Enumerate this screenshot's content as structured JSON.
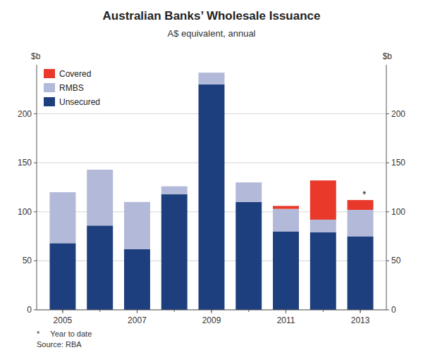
{
  "chart_data": {
    "type": "bar",
    "stacked": true,
    "title": "Australian Banks’ Wholesale Issuance",
    "subtitle": "A$ equivalent, annual",
    "ylabel": "$b",
    "y2label": "$b",
    "footnote": "*     Year to date\nSource: RBA",
    "x": [
      2005,
      2006,
      2007,
      2008,
      2009,
      2010,
      2011,
      2012,
      2013
    ],
    "xlim": [
      2004.3,
      2013.7
    ],
    "xticks": [
      2005,
      2007,
      2009,
      2011,
      2013
    ],
    "series": [
      {
        "name": "Unsecured",
        "color": "#1e3f7e",
        "values": [
          68,
          86,
          62,
          118,
          230,
          110,
          80,
          79,
          75
        ]
      },
      {
        "name": "RMBS",
        "color": "#b3b9d9",
        "values": [
          52,
          57,
          48,
          8,
          12,
          20,
          23,
          13,
          27
        ]
      },
      {
        "name": "Covered",
        "color": "#e8392a",
        "values": [
          0,
          0,
          0,
          0,
          0,
          0,
          3,
          40,
          10
        ]
      }
    ],
    "ylim": [
      0,
      250
    ],
    "yticks": [
      0,
      50,
      100,
      150,
      200
    ],
    "y2lim": [
      0,
      250
    ],
    "y2ticks": [
      0,
      50,
      100,
      150,
      200
    ],
    "grid": true,
    "legend": "upper-left",
    "annotations": [
      {
        "text": "*",
        "x": 2013
      }
    ]
  }
}
